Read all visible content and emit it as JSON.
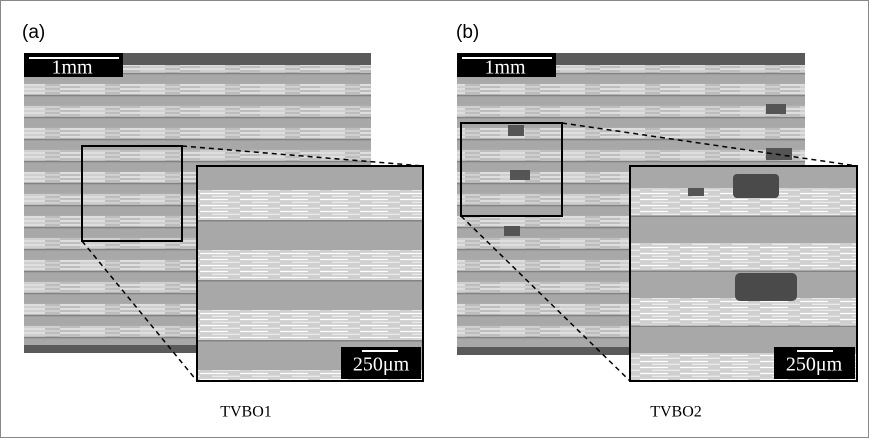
{
  "panels": [
    {
      "label": "(a)",
      "scale_bar": "1mm",
      "inset_scale_bar": "250μm",
      "caption": "TVBO1"
    },
    {
      "label": "(b)",
      "scale_bar": "1mm",
      "inset_scale_bar": "250μm",
      "caption": "TVBO2"
    }
  ]
}
